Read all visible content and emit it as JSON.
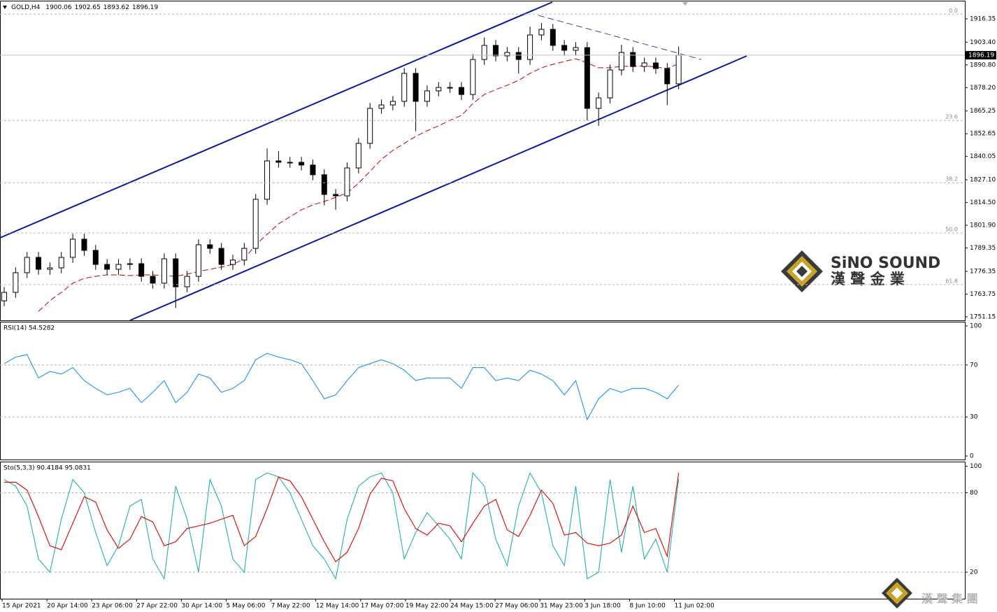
{
  "chart_data": [
    {
      "type": "candlestick",
      "title": "GOLD,H4",
      "header_values": [
        1900.06,
        1902.65,
        1893.62,
        1896.19
      ],
      "open": [
        1760.0,
        1764.7,
        1775.6,
        1784.1,
        1777.5,
        1778.3,
        1784.1,
        1794.2,
        1788.0,
        1780.2,
        1777.5,
        1780.2,
        1780.6,
        1773.6,
        1769.8,
        1783.3,
        1767.8,
        1773.6,
        1791.1,
        1789.1,
        1780.2,
        1782.6,
        1789.1,
        1816.3,
        1837.6,
        1836.8,
        1836.8,
        1835.3,
        1829.9,
        1819.0,
        1818.2,
        1833.7,
        1847.3,
        1866.7,
        1868.6,
        1870.6,
        1886.1,
        1870.6,
        1876.4,
        1878.3,
        1878.3,
        1874.4,
        1893.8,
        1901.6,
        1895.8,
        1897.7,
        1893.8,
        1907.4,
        1910.5,
        1901.6,
        1898.9,
        1900.4,
        1866.7,
        1872.5,
        1888.0,
        1897.7,
        1889.9,
        1891.9,
        1888.8,
        1880.3
      ],
      "high": [
        1767.7,
        1778.6,
        1787.1,
        1787.1,
        1781.3,
        1787.1,
        1797.2,
        1797.2,
        1791.0,
        1783.2,
        1783.2,
        1783.6,
        1783.6,
        1776.6,
        1786.3,
        1786.3,
        1776.6,
        1794.1,
        1794.1,
        1792.1,
        1785.6,
        1792.1,
        1819.3,
        1844.5,
        1843.0,
        1839.8,
        1839.8,
        1838.3,
        1832.9,
        1822.0,
        1836.7,
        1850.3,
        1869.7,
        1871.6,
        1873.6,
        1889.1,
        1889.1,
        1879.4,
        1881.3,
        1881.3,
        1881.3,
        1896.8,
        1906.0,
        1904.6,
        1900.7,
        1900.7,
        1912.0,
        1914.0,
        1913.5,
        1904.6,
        1903.4,
        1903.4,
        1875.5,
        1891.0,
        1902.0,
        1900.7,
        1894.9,
        1894.9,
        1891.8,
        1901.0
      ],
      "low": [
        1757.0,
        1761.7,
        1772.6,
        1774.5,
        1774.5,
        1775.3,
        1781.1,
        1785.0,
        1777.2,
        1774.5,
        1774.5,
        1777.2,
        1770.6,
        1766.8,
        1766.8,
        1756.0,
        1764.8,
        1770.6,
        1786.1,
        1777.2,
        1777.2,
        1779.6,
        1786.1,
        1813.3,
        1833.8,
        1833.8,
        1832.3,
        1826.9,
        1813.0,
        1810.5,
        1815.2,
        1830.7,
        1844.3,
        1863.7,
        1865.6,
        1867.6,
        1854.0,
        1867.6,
        1873.4,
        1875.3,
        1871.4,
        1871.4,
        1890.8,
        1892.8,
        1892.8,
        1886.0,
        1890.8,
        1904.4,
        1898.6,
        1895.9,
        1895.9,
        1860.0,
        1857.0,
        1869.5,
        1885.0,
        1886.9,
        1886.9,
        1885.8,
        1868.5,
        1877.3
      ],
      "close": [
        1764.7,
        1775.6,
        1784.1,
        1777.5,
        1778.3,
        1784.1,
        1794.2,
        1788.0,
        1780.2,
        1777.5,
        1780.2,
        1780.6,
        1773.6,
        1769.8,
        1783.3,
        1767.8,
        1773.6,
        1791.1,
        1789.1,
        1780.2,
        1782.6,
        1789.1,
        1816.3,
        1837.6,
        1836.8,
        1836.8,
        1835.3,
        1829.9,
        1819.0,
        1818.2,
        1833.7,
        1847.3,
        1866.7,
        1868.6,
        1870.6,
        1886.1,
        1870.6,
        1876.4,
        1878.3,
        1878.3,
        1874.4,
        1893.8,
        1901.6,
        1895.8,
        1897.7,
        1893.8,
        1907.4,
        1910.5,
        1901.6,
        1898.9,
        1900.4,
        1866.7,
        1872.5,
        1888.0,
        1897.7,
        1889.9,
        1891.9,
        1888.8,
        1880.3,
        1896.19
      ],
      "up_color": "#ffffff",
      "down_color": "#000000",
      "outline_color": "#000000",
      "moving_average": {
        "color": "#c00000",
        "values": [
          null,
          null,
          null,
          1754.2,
          1760.1,
          1764.7,
          1769.8,
          1772.5,
          1773.6,
          1774.4,
          1774.4,
          1774.0,
          1774.4,
          1774.4,
          1774.0,
          1773.6,
          1774.8,
          1776.3,
          1777.5,
          1778.7,
          1780.2,
          1783.3,
          1791.1,
          1796.9,
          1802.7,
          1806.6,
          1810.5,
          1813.2,
          1815.1,
          1817.4,
          1819.8,
          1825.2,
          1831.8,
          1838.4,
          1843.4,
          1847.3,
          1851.2,
          1854.3,
          1857.0,
          1860.1,
          1862.8,
          1869.4,
          1874.4,
          1877.1,
          1879.5,
          1882.2,
          1886.1,
          1889.2,
          1891.1,
          1892.7,
          1894.2,
          1891.9,
          1889.2,
          1889.2,
          1890.0,
          1890.0,
          1890.3,
          1889.6,
          1888.8,
          1891.5
        ]
      },
      "last_price": 1896.19,
      "fib_levels": [
        {
          "value": 1918.9,
          "label": "0.0"
        },
        {
          "value": 1860.0,
          "label": "23.6"
        },
        {
          "value": 1825.5,
          "label": "38.2"
        },
        {
          "value": 1797.6,
          "label": "50.0"
        },
        {
          "value": 1769.0,
          "label": "61.8"
        }
      ],
      "ylim": [
        1749.2,
        1926.0
      ],
      "yticks": [
        {
          "value": 1916.35,
          "label": "1916.35"
        },
        {
          "value": 1903.4,
          "label": "1903.40"
        },
        {
          "value": 1890.8,
          "label": "1890.80"
        },
        {
          "value": 1878.2,
          "label": "1878.20"
        },
        {
          "value": 1865.25,
          "label": "1865.25"
        },
        {
          "value": 1852.65,
          "label": "1852.65"
        },
        {
          "value": 1840.05,
          "label": "1840.05"
        },
        {
          "value": 1827.1,
          "label": "1827.10"
        },
        {
          "value": 1814.5,
          "label": "1814.50"
        },
        {
          "value": 1801.9,
          "label": "1801.90"
        },
        {
          "value": 1789.35,
          "label": "1789.35"
        },
        {
          "value": 1776.35,
          "label": "1776.35"
        },
        {
          "value": 1763.75,
          "label": "1763.75"
        },
        {
          "value": 1751.15,
          "label": "1751.15"
        }
      ]
    },
    {
      "type": "line",
      "title": "RSI(14) 54.5282",
      "series": [
        {
          "color": "#1e90ff",
          "values": [
            71,
            76,
            78,
            60,
            65,
            63,
            68,
            58,
            52,
            47,
            49,
            52,
            41,
            49,
            58,
            41,
            49,
            63,
            60,
            49,
            52,
            58,
            74,
            79,
            76,
            74,
            71,
            58,
            44,
            47,
            58,
            68,
            71,
            74,
            71,
            66,
            58,
            60,
            60,
            60,
            52,
            68,
            68,
            58,
            60,
            58,
            66,
            63,
            58,
            47,
            58,
            28,
            44,
            52,
            49,
            52,
            52,
            49,
            44,
            54.5282
          ]
        }
      ],
      "levels": [
        70,
        30
      ],
      "ylim": [
        -2.7,
        102.7
      ],
      "yticks": [
        0,
        30,
        70,
        100
      ]
    },
    {
      "type": "line",
      "title": "Sto(5,3,3) 90.4184 95.0831",
      "series": [
        {
          "color": "#20b2aa",
          "values": [
            90,
            85,
            70,
            30,
            20,
            60,
            90,
            80,
            50,
            25,
            40,
            70,
            75,
            30,
            15,
            85,
            60,
            20,
            90,
            70,
            30,
            20,
            90,
            95,
            92,
            80,
            60,
            40,
            30,
            15,
            60,
            85,
            92,
            95,
            80,
            30,
            50,
            65,
            55,
            45,
            30,
            95,
            85,
            45,
            25,
            70,
            95,
            80,
            40,
            25,
            85,
            15,
            20,
            90,
            35,
            85,
            30,
            45,
            20,
            90.4184
          ]
        },
        {
          "color": "#e00000",
          "values": [
            88,
            88,
            82,
            62,
            40,
            37,
            57,
            77,
            73,
            52,
            38,
            45,
            62,
            58,
            40,
            43,
            53,
            55,
            57,
            60,
            63,
            40,
            47,
            68,
            92,
            89,
            77,
            60,
            43,
            28,
            35,
            53,
            79,
            91,
            89,
            68,
            53,
            48,
            57,
            55,
            43,
            57,
            70,
            75,
            52,
            47,
            63,
            82,
            72,
            48,
            50,
            42,
            40,
            42,
            48,
            70,
            50,
            53,
            32,
            95.0831
          ]
        }
      ],
      "levels": [
        80,
        20
      ],
      "ylim": [
        0,
        103
      ],
      "yticks": [
        20,
        80,
        100
      ],
      "xtick_labels": [
        "15 Apr 2021",
        "20 Apr 14:00",
        "23 Apr 06:00",
        "27 Apr 22:00",
        "30 Apr 14:00",
        "5 May 06:00",
        "7 May 22:00",
        "12 May 14:00",
        "17 May 07:00",
        "19 May 22:00",
        "24 May 15:00",
        "27 May 06:00",
        "31 May 23:00",
        "3 Jun 18:00",
        "8 Jun 10:00",
        "11 Jun 02:00"
      ]
    }
  ],
  "branding": {
    "logo_text": "SiNO SOUND",
    "logo_chinese": "漢 聲 金 業",
    "footer_chinese": "漢 聲 集 團"
  }
}
